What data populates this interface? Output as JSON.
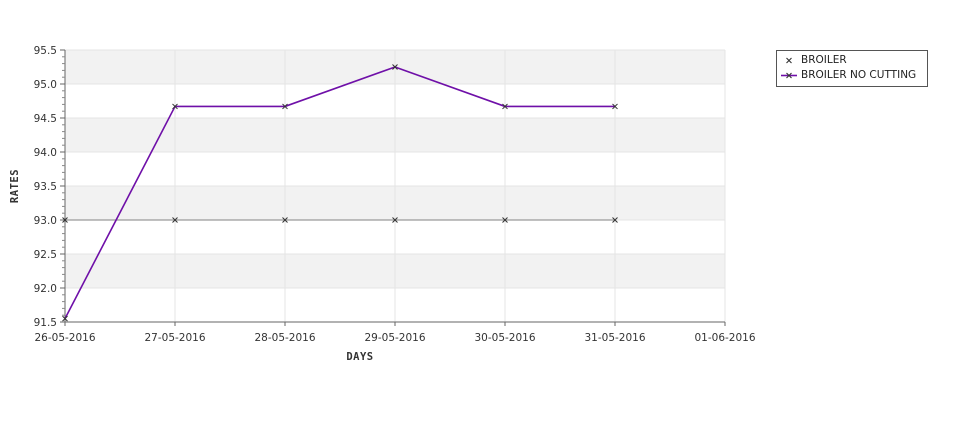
{
  "chart_data": {
    "type": "line",
    "xlabel": "DAYS",
    "ylabel": "RATES",
    "x": [
      "26-05-2016",
      "27-05-2016",
      "28-05-2016",
      "29-05-2016",
      "30-05-2016",
      "31-05-2016"
    ],
    "x_ticks": [
      "26-05-2016",
      "27-05-2016",
      "28-05-2016",
      "29-05-2016",
      "30-05-2016",
      "31-05-2016",
      "01-06-2016"
    ],
    "xlim": [
      "26-05-2016",
      "01-06-2016"
    ],
    "ylim": [
      91.5,
      95.5
    ],
    "y_ticks": [
      "91.5",
      "92.0",
      "92.5",
      "93.0",
      "93.5",
      "94.0",
      "94.5",
      "95.0",
      "95.5"
    ],
    "grid": true,
    "legend_position": "top-right",
    "series": [
      {
        "name": "BROILER",
        "values": [
          93.0,
          93.0,
          93.0,
          93.0,
          93.0,
          93.0
        ],
        "color": "#9a9a9a",
        "marker": "x"
      },
      {
        "name": "BROILER NO CUTTING",
        "values": [
          91.55,
          94.67,
          94.67,
          95.25,
          94.67,
          94.67
        ],
        "color": "#6f10a8",
        "marker": "x"
      }
    ]
  }
}
